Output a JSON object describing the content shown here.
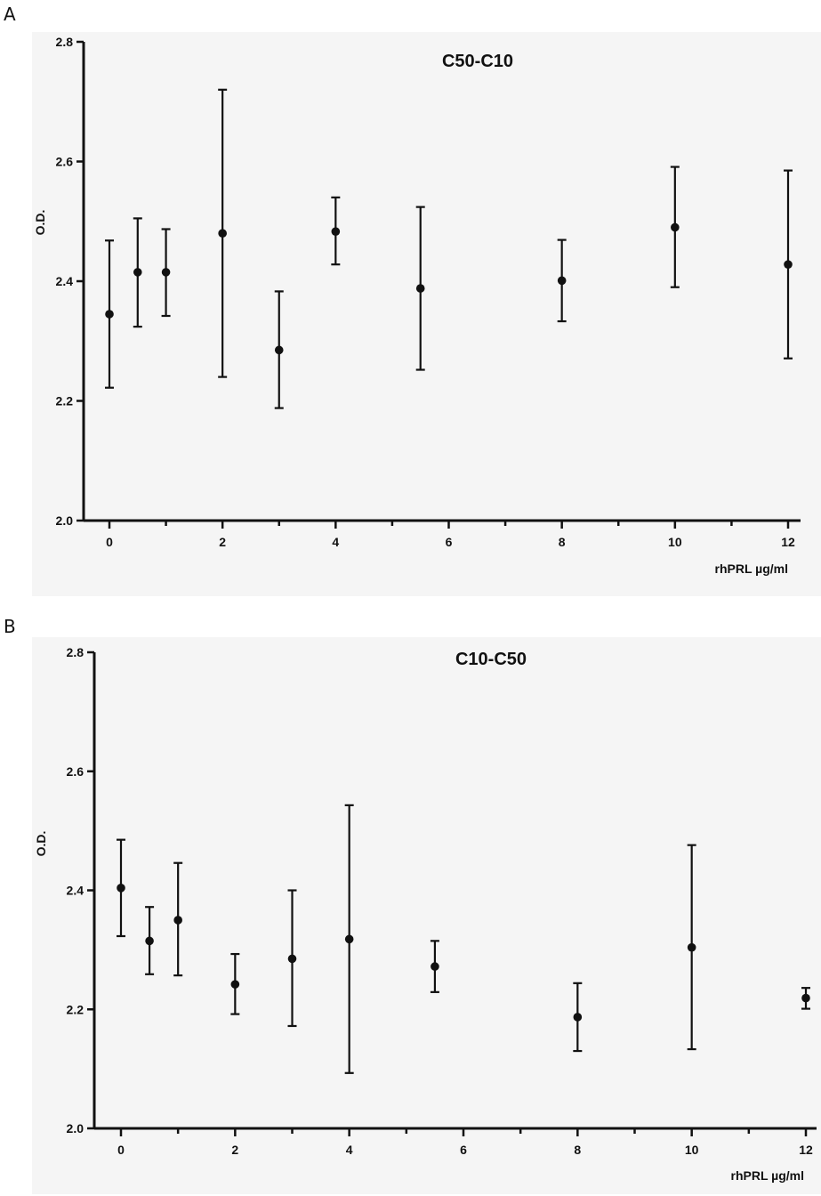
{
  "chart_data": [
    {
      "panel_label": "A",
      "type": "scatter",
      "title": "C50-C10",
      "xlabel": "rhPRL µg/ml",
      "ylabel": "O.D.",
      "xlim": [
        -0.5,
        12.2
      ],
      "ylim": [
        2.0,
        2.8
      ],
      "x_ticks": [
        0,
        2,
        4,
        6,
        8,
        10,
        12
      ],
      "y_ticks": [
        2.0,
        2.2,
        2.4,
        2.6,
        2.8
      ],
      "grid": false,
      "background": "#f5f5f5",
      "points": [
        {
          "x": 0,
          "y": 2.345,
          "err_low": 2.222,
          "err_high": 2.468
        },
        {
          "x": 0.5,
          "y": 2.415,
          "err_low": 2.324,
          "err_high": 2.505
        },
        {
          "x": 1,
          "y": 2.415,
          "err_low": 2.342,
          "err_high": 2.487
        },
        {
          "x": 2,
          "y": 2.48,
          "err_low": 2.24,
          "err_high": 2.72
        },
        {
          "x": 3,
          "y": 2.285,
          "err_low": 2.188,
          "err_high": 2.383
        },
        {
          "x": 4,
          "y": 2.483,
          "err_low": 2.428,
          "err_high": 2.54
        },
        {
          "x": 5.5,
          "y": 2.388,
          "err_low": 2.252,
          "err_high": 2.524
        },
        {
          "x": 8,
          "y": 2.401,
          "err_low": 2.333,
          "err_high": 2.469
        },
        {
          "x": 10,
          "y": 2.49,
          "err_low": 2.39,
          "err_high": 2.591
        },
        {
          "x": 12,
          "y": 2.428,
          "err_low": 2.271,
          "err_high": 2.585
        }
      ]
    },
    {
      "panel_label": "B",
      "type": "scatter",
      "title": "C10-C50",
      "xlabel": "rhPRL µg/ml",
      "ylabel": "O.D.",
      "xlim": [
        -0.5,
        12.1
      ],
      "ylim": [
        2.0,
        2.8
      ],
      "x_ticks": [
        0,
        2,
        4,
        6,
        8,
        10,
        12
      ],
      "y_ticks": [
        2.0,
        2.2,
        2.4,
        2.6,
        2.8
      ],
      "grid": false,
      "background": "#f5f5f5",
      "points": [
        {
          "x": 0,
          "y": 2.404,
          "err_low": 2.323,
          "err_high": 2.485
        },
        {
          "x": 0.5,
          "y": 2.315,
          "err_low": 2.259,
          "err_high": 2.372
        },
        {
          "x": 1,
          "y": 2.35,
          "err_low": 2.257,
          "err_high": 2.446
        },
        {
          "x": 2,
          "y": 2.242,
          "err_low": 2.192,
          "err_high": 2.293
        },
        {
          "x": 3,
          "y": 2.285,
          "err_low": 2.172,
          "err_high": 2.4
        },
        {
          "x": 4,
          "y": 2.318,
          "err_low": 2.093,
          "err_high": 2.543
        },
        {
          "x": 5.5,
          "y": 2.272,
          "err_low": 2.229,
          "err_high": 2.315
        },
        {
          "x": 8,
          "y": 2.187,
          "err_low": 2.13,
          "err_high": 2.244
        },
        {
          "x": 10,
          "y": 2.304,
          "err_low": 2.133,
          "err_high": 2.476
        },
        {
          "x": 12,
          "y": 2.219,
          "err_low": 2.201,
          "err_high": 2.236
        }
      ]
    }
  ]
}
